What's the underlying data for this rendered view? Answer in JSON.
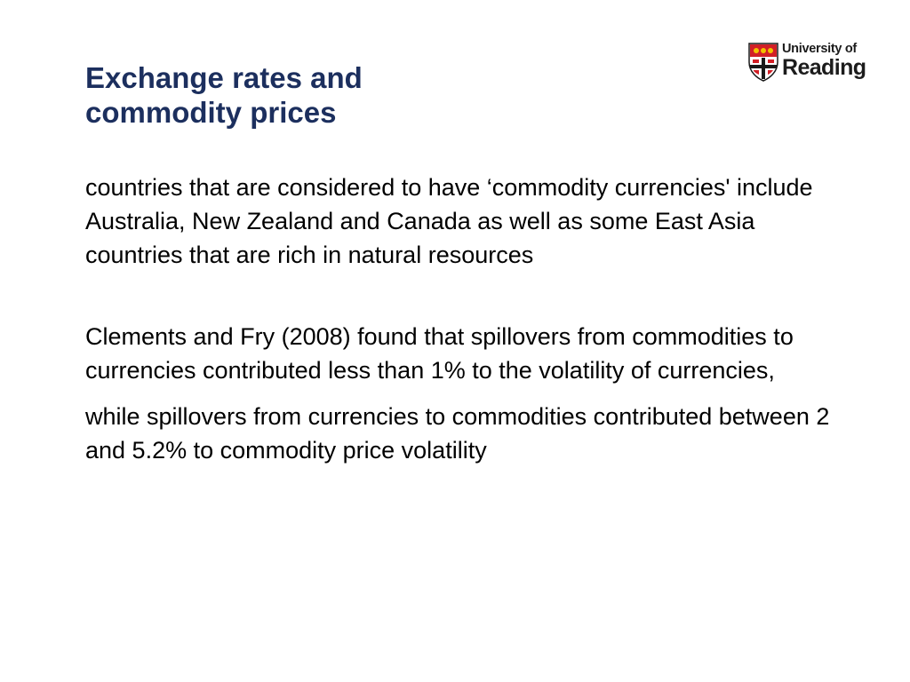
{
  "slide": {
    "title_line1": "Exchange rates and",
    "title_line2": "commodity prices",
    "logo": {
      "line1": "University of",
      "line2": "Reading",
      "icon": "crest-shield-icon",
      "colors": {
        "shield_red": "#d21f26",
        "shield_black": "#1a1a1a",
        "shield_gold": "#f2c200"
      }
    },
    "paragraphs": [
      "countries that are considered to have ‘commodity currencies' include Australia, New Zealand and Canada as well as some East Asia countries that are rich in natural resources",
      "Clements and Fry (2008) found that spillovers from commodities to currencies contributed less than 1% to the volatility of currencies,",
      "while spillovers from currencies to commodities contributed between 2 and 5.2% to commodity price volatility"
    ]
  },
  "colors": {
    "title": "#1c2f5e",
    "body_text": "#000000",
    "background": "#ffffff"
  }
}
